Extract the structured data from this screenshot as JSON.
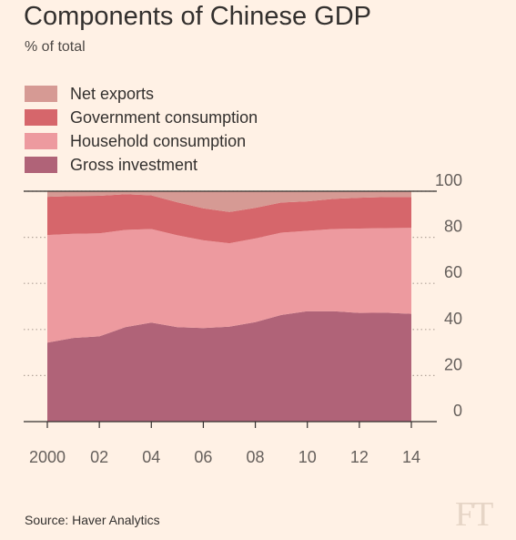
{
  "header": {
    "title": "Components of Chinese GDP",
    "subtitle": "% of total"
  },
  "footer": {
    "source": "Source: Haver Analytics",
    "logo_text": "FT"
  },
  "colors": {
    "background": "#fff1e5",
    "net_exports": "#d69a94",
    "government_consumption": "#d6666b",
    "household_consumption": "#ed9a9f",
    "gross_investment": "#b06378",
    "tick_text": "#66605c",
    "gridline": "#b3a59a",
    "baseline": "#33302e"
  },
  "chart_data": {
    "type": "area",
    "stacked": true,
    "x": [
      2000,
      2001,
      2002,
      2003,
      2004,
      2005,
      2006,
      2007,
      2008,
      2009,
      2010,
      2011,
      2012,
      2013,
      2014
    ],
    "x_tick_values": [
      2000,
      2002,
      2004,
      2006,
      2008,
      2010,
      2012,
      2014
    ],
    "x_tick_labels": [
      "2000",
      "02",
      "04",
      "06",
      "08",
      "10",
      "12",
      "14"
    ],
    "y_ticks": [
      0,
      20,
      40,
      60,
      80,
      100
    ],
    "ylim": [
      0,
      100
    ],
    "y_axis_side": "right",
    "grid": true,
    "legend_position": "top-left",
    "series": [
      {
        "name": "Gross investment",
        "key": "gross_investment",
        "values": [
          34.3,
          36.3,
          37.0,
          41.0,
          43.0,
          41.0,
          40.6,
          41.2,
          43.2,
          46.3,
          47.9,
          47.9,
          47.2,
          47.3,
          46.8
        ]
      },
      {
        "name": "Household consumption",
        "key": "household_consumption",
        "values": [
          46.7,
          45.2,
          44.7,
          42.2,
          40.6,
          39.9,
          38.1,
          36.2,
          36.3,
          35.7,
          34.9,
          35.7,
          36.6,
          36.7,
          37.3
        ]
      },
      {
        "name": "Government consumption",
        "key": "government_consumption",
        "values": [
          16.6,
          16.4,
          16.3,
          15.5,
          14.6,
          14.3,
          13.9,
          13.6,
          13.3,
          13.1,
          12.8,
          13.1,
          13.4,
          13.5,
          13.4
        ]
      },
      {
        "name": "Net exports",
        "key": "net_exports",
        "values": [
          2.4,
          2.1,
          2.0,
          1.3,
          1.8,
          4.8,
          7.4,
          9.0,
          7.2,
          4.9,
          4.4,
          3.3,
          2.8,
          2.5,
          2.5
        ]
      }
    ],
    "legend_order": [
      "net_exports",
      "government_consumption",
      "household_consumption",
      "gross_investment"
    ]
  }
}
